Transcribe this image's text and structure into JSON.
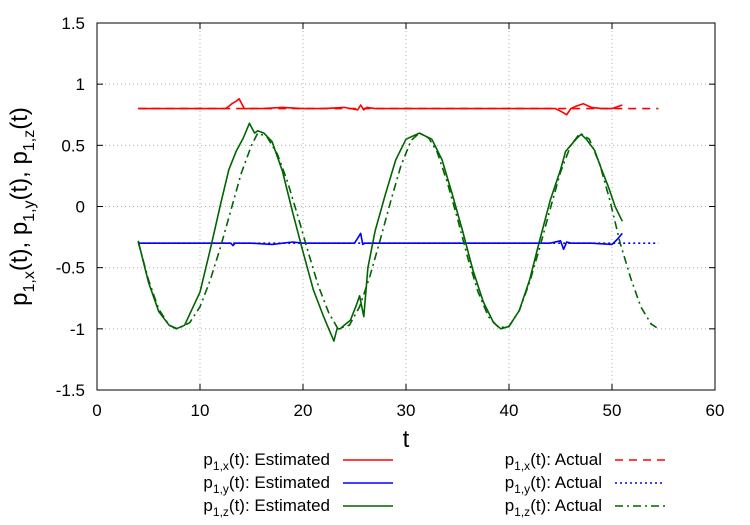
{
  "chart_data": {
    "type": "line",
    "xlabel": "t",
    "ylabel": {
      "base": "p",
      "parts": [
        {
          "sub": "1,x",
          "after": "(t), "
        },
        {
          "sub": "1,y",
          "after": "(t), "
        },
        {
          "sub": "1,z",
          "after": "(t)"
        }
      ]
    },
    "xlim": [
      0,
      60
    ],
    "ylim": [
      -1.5,
      1.5
    ],
    "x_ticks": [
      0,
      10,
      20,
      30,
      40,
      50,
      60
    ],
    "y_ticks": [
      1.5,
      1,
      0.5,
      0,
      -0.5,
      -1,
      -1.5
    ],
    "x_tick_labels": [
      "0",
      "10",
      "20",
      "30",
      "40",
      "50",
      "60"
    ],
    "y_tick_labels": [
      "1.5",
      "1",
      "0.5",
      "0",
      "-0.5",
      "-1",
      "-1.5"
    ],
    "grid": true,
    "legend_position": "bottom",
    "series": [
      {
        "name": "Estimated",
        "label_base": "p",
        "label_sub": "1,x",
        "label_after": "(t): Estimated",
        "color": "#ff0000",
        "dash": "solid",
        "x": [
          4,
          12.5,
          13.1,
          13.5,
          13.8,
          14.3,
          16,
          18,
          20,
          22,
          24,
          25.3,
          25.6,
          25.9,
          26.2,
          27,
          30,
          35,
          40,
          44.5,
          45.2,
          45.6,
          46,
          46.5,
          47.2,
          48,
          49,
          50,
          51
        ],
        "y": [
          0.8,
          0.8,
          0.84,
          0.86,
          0.88,
          0.8,
          0.8,
          0.81,
          0.8,
          0.8,
          0.81,
          0.79,
          0.83,
          0.79,
          0.81,
          0.8,
          0.8,
          0.8,
          0.8,
          0.8,
          0.77,
          0.75,
          0.8,
          0.82,
          0.84,
          0.81,
          0.8,
          0.8,
          0.83
        ]
      },
      {
        "name": "Estimated",
        "label_base": "p",
        "label_sub": "1,y",
        "label_after": "(t): Estimated",
        "color": "#0000ff",
        "dash": "solid",
        "x": [
          4,
          10,
          12,
          13,
          13.2,
          13.4,
          15,
          17,
          19,
          20,
          21,
          25,
          25.6,
          25.8,
          26,
          27,
          30,
          35,
          40,
          44,
          45,
          45.3,
          45.6,
          46,
          48,
          50,
          50.5,
          51
        ],
        "y": [
          -0.3,
          -0.3,
          -0.3,
          -0.3,
          -0.32,
          -0.3,
          -0.3,
          -0.31,
          -0.29,
          -0.3,
          -0.3,
          -0.3,
          -0.22,
          -0.31,
          -0.3,
          -0.3,
          -0.3,
          -0.3,
          -0.3,
          -0.3,
          -0.28,
          -0.35,
          -0.29,
          -0.3,
          -0.3,
          -0.31,
          -0.27,
          -0.22
        ]
      },
      {
        "name": "Estimated",
        "label_base": "p",
        "label_sub": "1,z",
        "label_after": "(t): Estimated",
        "color": "#006400",
        "dash": "solid",
        "x": [
          4,
          4.5,
          5,
          6,
          7,
          7.7,
          8.5,
          10,
          11,
          12,
          12.8,
          13.5,
          14.2,
          14.8,
          15.3,
          15.6,
          16.2,
          17,
          18,
          19,
          20,
          21,
          22,
          22.6,
          23,
          23.3,
          23.6,
          24,
          24.6,
          25.2,
          25.5,
          25.9,
          26.3,
          27,
          28,
          29,
          30,
          31.3,
          32.5,
          33.5,
          34.5,
          35.5,
          36.5,
          37.5,
          38.5,
          39.2,
          40,
          41,
          42,
          43,
          44,
          45,
          45.5,
          46,
          46.5,
          47,
          47.5,
          48.3,
          49,
          49.7,
          50.3,
          51
        ],
        "y": [
          -0.28,
          -0.45,
          -0.62,
          -0.86,
          -0.97,
          -1.0,
          -0.97,
          -0.7,
          -0.35,
          0.02,
          0.3,
          0.45,
          0.56,
          0.68,
          0.6,
          0.62,
          0.6,
          0.53,
          0.29,
          -0.05,
          -0.37,
          -0.68,
          -0.9,
          -1.02,
          -1.1,
          -1.0,
          -1.0,
          -0.97,
          -0.93,
          -0.8,
          -0.73,
          -0.9,
          -0.5,
          -0.2,
          0.1,
          0.38,
          0.55,
          0.6,
          0.55,
          0.38,
          0.1,
          -0.2,
          -0.52,
          -0.78,
          -0.95,
          -1.0,
          -0.98,
          -0.85,
          -0.6,
          -0.27,
          0.05,
          0.3,
          0.45,
          0.5,
          0.55,
          0.59,
          0.55,
          0.46,
          0.3,
          0.15,
          0.0,
          -0.12
        ]
      },
      {
        "name": "Actual",
        "label_base": "p",
        "label_sub": "1,x",
        "label_after": "(t): Actual",
        "color": "#ff0000",
        "dash": "dashed",
        "x": [
          4,
          54.5
        ],
        "y": [
          0.8,
          0.8
        ]
      },
      {
        "name": "Actual",
        "label_base": "p",
        "label_sub": "1,y",
        "label_after": "(t): Actual",
        "color": "#0000ff",
        "dash": "dotted",
        "x": [
          4,
          54.5
        ],
        "y": [
          -0.3,
          -0.3
        ]
      },
      {
        "name": "Actual",
        "label_base": "p",
        "label_sub": "1,z",
        "label_after": "(t): Actual",
        "color": "#006400",
        "dash": "dashdot",
        "x": [
          4,
          5,
          6,
          7,
          7.8,
          9,
          10,
          11,
          12,
          13,
          14,
          15,
          15.6,
          16.5,
          17.5,
          18.5,
          19.5,
          20.5,
          21.5,
          22.5,
          23.4,
          24.5,
          25.5,
          26.5,
          27.5,
          28.5,
          29.5,
          30.5,
          31.3,
          32.2,
          33,
          34,
          35,
          36,
          37,
          38,
          39,
          40,
          41,
          42,
          43,
          44,
          45,
          46,
          46.9,
          47.8,
          48.8,
          49.8,
          50.8,
          51.8,
          52.8,
          53.8,
          54.5
        ],
        "y": [
          -0.29,
          -0.6,
          -0.84,
          -0.97,
          -1.0,
          -0.95,
          -0.82,
          -0.6,
          -0.33,
          -0.03,
          0.27,
          0.5,
          0.6,
          0.57,
          0.43,
          0.2,
          -0.08,
          -0.37,
          -0.65,
          -0.87,
          -1.0,
          -0.97,
          -0.82,
          -0.57,
          -0.27,
          0.04,
          0.33,
          0.54,
          0.6,
          0.56,
          0.45,
          0.2,
          -0.1,
          -0.42,
          -0.7,
          -0.9,
          -0.99,
          -0.98,
          -0.85,
          -0.62,
          -0.33,
          -0.02,
          0.28,
          0.5,
          0.6,
          0.55,
          0.35,
          0.05,
          -0.3,
          -0.58,
          -0.82,
          -0.96,
          -1.0
        ]
      }
    ]
  }
}
